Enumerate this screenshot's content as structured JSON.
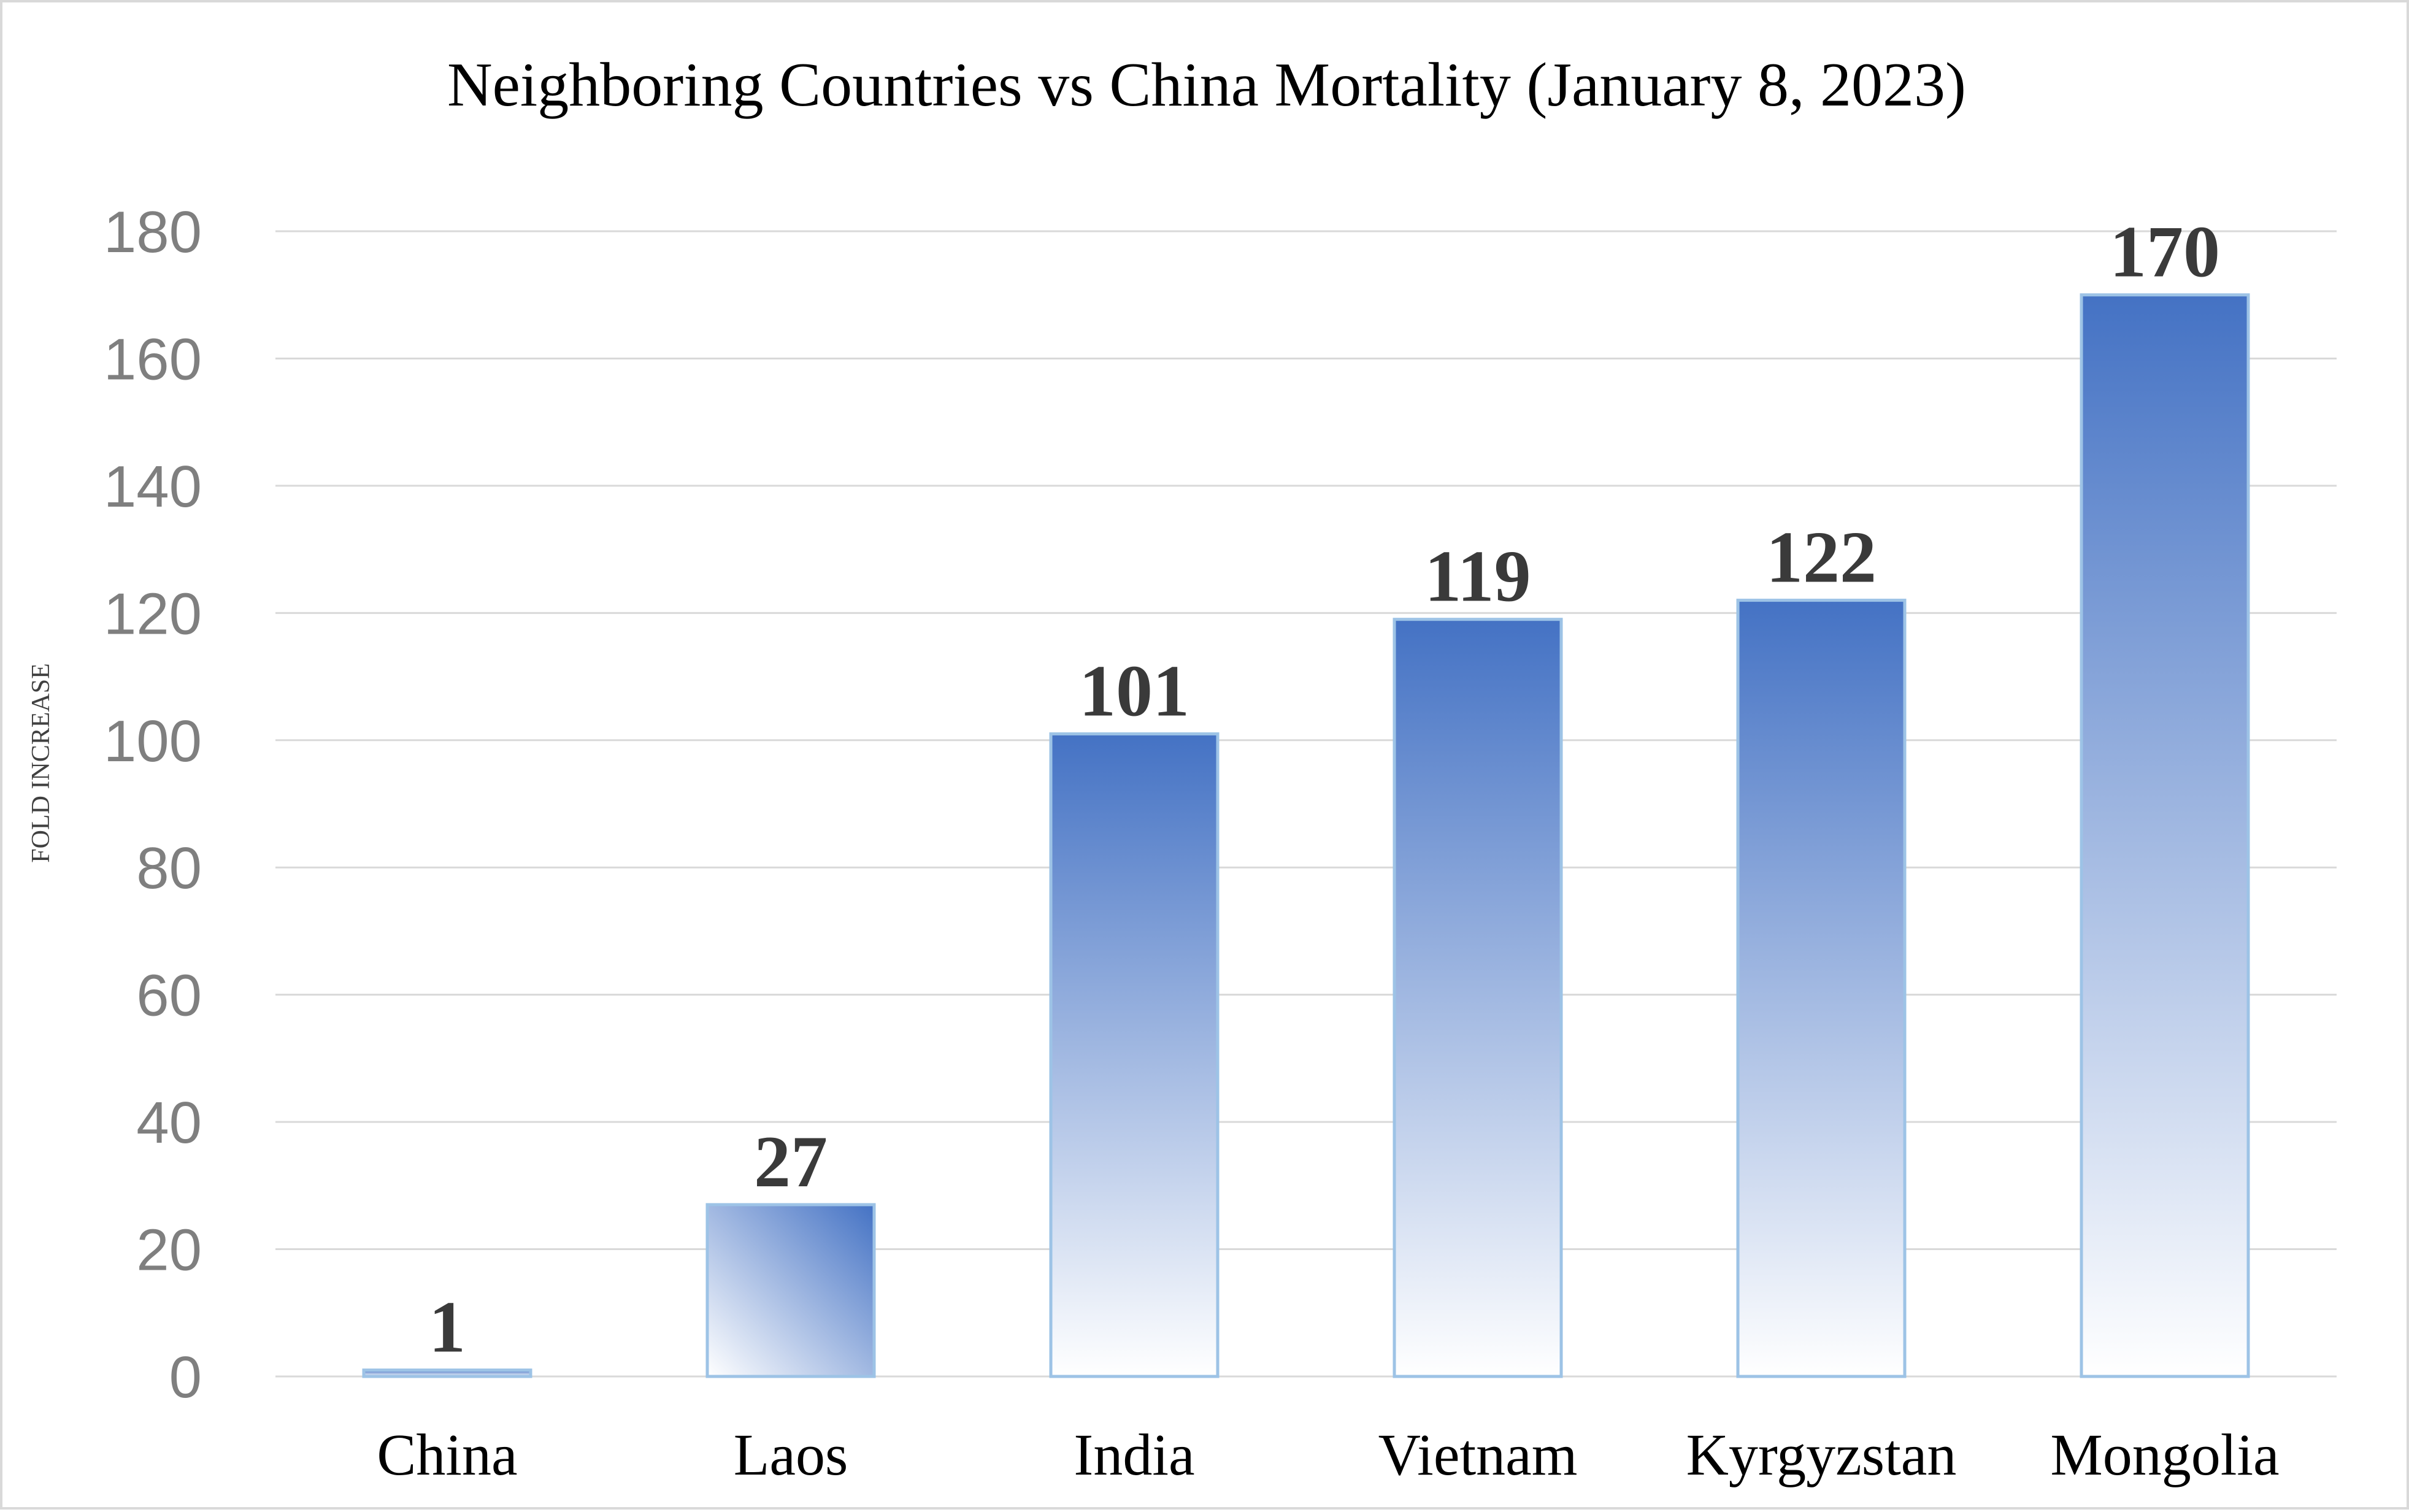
{
  "chart_data": {
    "type": "bar",
    "title": "Neighboring Countries vs China Mortality (January 8, 2023)",
    "xlabel": "",
    "ylabel": "FOLD INCREASE",
    "categories": [
      "China",
      "Laos",
      "India",
      "Vietnam",
      "Kyrgyzstan",
      "Mongolia"
    ],
    "values": [
      1,
      27,
      101,
      119,
      122,
      170
    ],
    "data_labels": [
      "1",
      "27",
      "101",
      "119",
      "122",
      "170"
    ],
    "ylim": [
      0,
      180
    ],
    "yticks": [
      0,
      20,
      40,
      60,
      80,
      100,
      120,
      140,
      160,
      180
    ],
    "grid": true,
    "legend": "none",
    "colors": {
      "bar_top": "#4472c4",
      "bar_bottom": "#ffffff",
      "bar_border": "#9dc3e6",
      "gridline": "#d9d9d9",
      "tick_label": "#7f7f7f"
    }
  }
}
